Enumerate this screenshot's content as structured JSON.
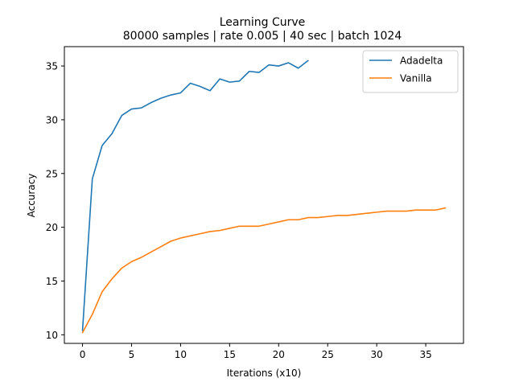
{
  "chart_data": {
    "type": "line",
    "title": "Learning Curve",
    "subtitle": "80000 samples | rate 0.005 | 40 sec | batch 1024",
    "xlabel": "Iterations (x10)",
    "ylabel": "Accuracy",
    "xlim": [
      -1.85,
      38.85
    ],
    "ylim": [
      9.2,
      36.8
    ],
    "xticks": [
      0,
      5,
      10,
      15,
      20,
      25,
      30,
      35
    ],
    "yticks": [
      10,
      15,
      20,
      25,
      30,
      35
    ],
    "grid": false,
    "legend_position": "top-right",
    "series": [
      {
        "name": "Adadelta",
        "color": "#1f77b4",
        "x": [
          0,
          1,
          2,
          3,
          4,
          5,
          6,
          7,
          8,
          9,
          10,
          11,
          12,
          13,
          14,
          15,
          16,
          17,
          18,
          19,
          20,
          21,
          22,
          23
        ],
        "values": [
          10.4,
          24.5,
          27.6,
          28.7,
          30.4,
          31.0,
          31.1,
          31.6,
          32.0,
          32.3,
          32.5,
          33.4,
          33.1,
          32.7,
          33.8,
          33.5,
          33.6,
          34.5,
          34.4,
          35.1,
          35.0,
          35.3,
          34.8,
          35.5
        ]
      },
      {
        "name": "Vanilla",
        "color": "#ff7f0e",
        "x": [
          0,
          1,
          2,
          3,
          4,
          5,
          6,
          7,
          8,
          9,
          10,
          11,
          12,
          13,
          14,
          15,
          16,
          17,
          18,
          19,
          20,
          21,
          22,
          23,
          24,
          25,
          26,
          27,
          28,
          29,
          30,
          31,
          32,
          33,
          34,
          35,
          36,
          37
        ],
        "values": [
          10.2,
          11.9,
          14.0,
          15.2,
          16.2,
          16.8,
          17.2,
          17.7,
          18.2,
          18.7,
          19.0,
          19.2,
          19.4,
          19.6,
          19.7,
          19.9,
          20.1,
          20.1,
          20.1,
          20.3,
          20.5,
          20.7,
          20.7,
          20.9,
          20.9,
          21.0,
          21.1,
          21.1,
          21.2,
          21.3,
          21.4,
          21.5,
          21.5,
          21.5,
          21.6,
          21.6,
          21.6,
          21.8
        ]
      }
    ]
  }
}
